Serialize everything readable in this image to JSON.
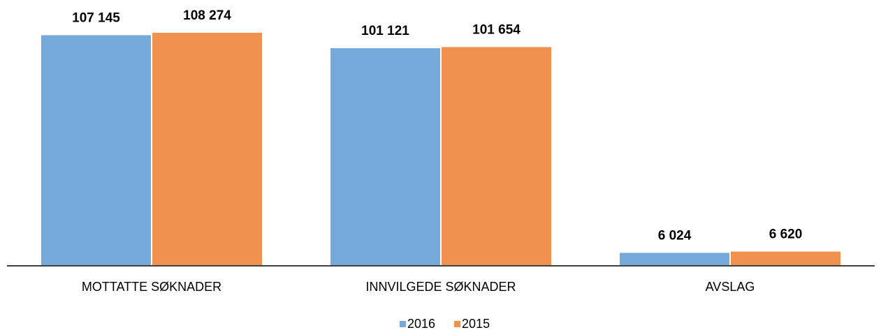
{
  "chart_data": {
    "type": "bar",
    "categories": [
      "MOTTATTE SØKNADER",
      "INNVILGEDE SØKNADER",
      "AVSLAG"
    ],
    "series": [
      {
        "name": "2016",
        "color": "#75a9dc",
        "values": [
          107145,
          101121,
          6024
        ],
        "value_labels": [
          "107 145",
          "101 121",
          "6 024"
        ]
      },
      {
        "name": "2015",
        "color": "#f0914f",
        "values": [
          108274,
          101654,
          6620
        ],
        "value_labels": [
          "108 274",
          "101 654",
          "6 620"
        ]
      }
    ],
    "legend": "bottom"
  }
}
